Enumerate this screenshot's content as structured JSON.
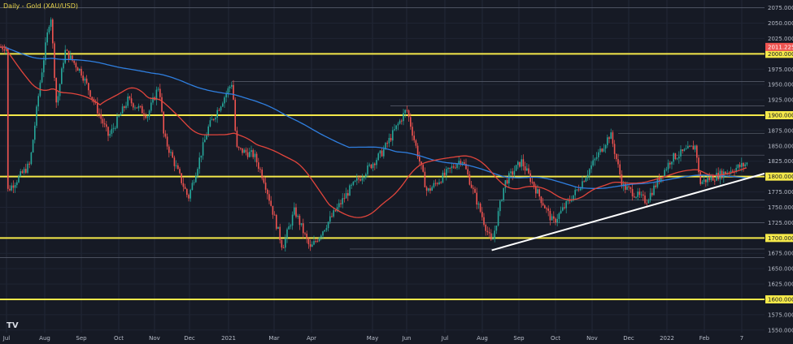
{
  "chart_data": {
    "type": "candlestick",
    "title": "Daily - Gold (XAU/USD)",
    "x_tick_labels": [
      "Jul",
      "Aug",
      "Sep",
      "Oct",
      "Nov",
      "Dec",
      "2021",
      "Mar",
      "Apr",
      "May",
      "Jun",
      "Jul",
      "Aug",
      "Sep",
      "Oct",
      "Nov",
      "Dec",
      "2022",
      "Feb",
      "7"
    ],
    "y_tick_labels": [
      "2075.000",
      "2050.000",
      "2025.000",
      "1975.000",
      "1950.000",
      "1925.000",
      "1875.000",
      "1850.000",
      "1825.000",
      "1775.000",
      "1750.000",
      "1725.000",
      "1675.000",
      "1650.000",
      "1625.000",
      "1575.000",
      "1550.000"
    ],
    "ylim": [
      1540,
      2090
    ],
    "price_levels": [
      {
        "label": "2000.000",
        "value": 2000
      },
      {
        "label": "1900.000",
        "value": 1900
      },
      {
        "label": "1800.000",
        "value": 1800
      },
      {
        "label": "1700.000",
        "value": 1700
      },
      {
        "label": "1600.000",
        "value": 1600
      }
    ],
    "last_price": {
      "label": "2011.225",
      "value": 2011.225
    },
    "colors": {
      "background": "#161a25",
      "up_candle": "#26a69a",
      "down_candle": "#ef5350",
      "level_line": "#f5e94a",
      "trendline": "#ffffff",
      "ma_short": "#e2453c",
      "ma_long": "#2f7fe0",
      "last_price_badge": "#ef5350"
    },
    "series": [
      {
        "name": "",
        "kind": "trendline",
        "points": [
          [
            "2021-08-09",
            1680
          ],
          [
            "2022-02-22",
            1805
          ]
        ]
      }
    ],
    "grid": true,
    "icons": {
      "watermark": "tradingview-logo-icon",
      "marker": "circle-marker-icon"
    }
  }
}
